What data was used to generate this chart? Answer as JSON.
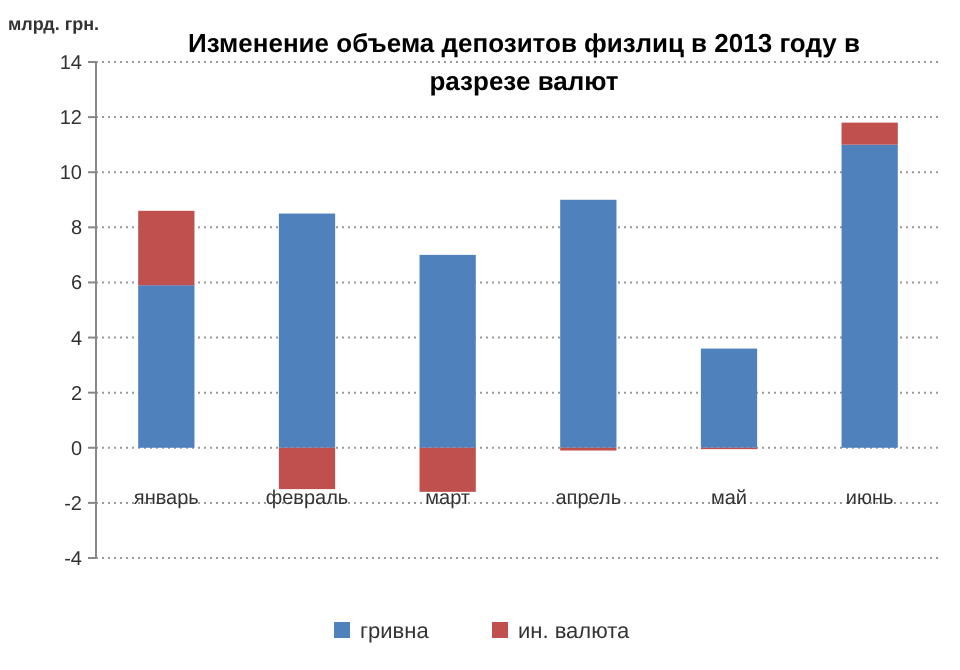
{
  "chart_data": {
    "type": "bar",
    "title": "Изменение объема депозитов физлиц в 2013  году в разрезе валют",
    "ylabel": "млрд. грн.",
    "categories": [
      "январь",
      "февраль",
      "март",
      "апрель",
      "май",
      "июнь"
    ],
    "stacked": true,
    "series": [
      {
        "name": "гривна",
        "color": "#4f81bd",
        "values": [
          5.9,
          8.5,
          7.0,
          9.0,
          3.6,
          11.0
        ]
      },
      {
        "name": "ин. валюта",
        "color": "#c0504d",
        "values": [
          2.7,
          -1.5,
          -1.6,
          -0.1,
          -0.05,
          0.8
        ]
      }
    ],
    "ylim": [
      -4,
      14
    ],
    "yticks": [
      -4,
      -2,
      0,
      2,
      4,
      6,
      8,
      10,
      12,
      14
    ],
    "grid": "y",
    "legend": "bottom"
  }
}
